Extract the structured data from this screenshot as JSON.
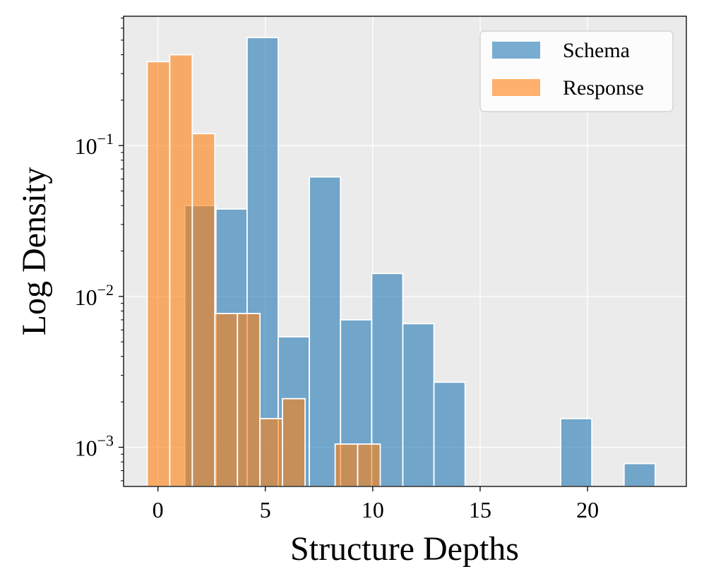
{
  "chart_data": {
    "type": "histogram",
    "xlabel": "Structure Depths",
    "ylabel": "Log Density",
    "yscale": "log",
    "xlim": [
      -1.6,
      24.6
    ],
    "ylim": [
      0.00055,
      0.72
    ],
    "grid": true,
    "legend_position": "top-right",
    "x_ticks": [
      {
        "value": 0,
        "label": "0"
      },
      {
        "value": 5,
        "label": "5"
      },
      {
        "value": 10,
        "label": "10"
      },
      {
        "value": 15,
        "label": "15"
      },
      {
        "value": 20,
        "label": "20"
      }
    ],
    "y_ticks": [
      {
        "value": 0.1,
        "base": "10",
        "exp": "−1"
      },
      {
        "value": 0.01,
        "base": "10",
        "exp": "−2"
      },
      {
        "value": 0.001,
        "base": "10",
        "exp": "−3"
      }
    ],
    "series": [
      {
        "name": "Schema",
        "color": "#1f77b4",
        "alpha": 0.6,
        "bins": [
          {
            "x0": 1.25,
            "x1": 2.7,
            "value": 0.04
          },
          {
            "x0": 2.7,
            "x1": 4.15,
            "value": 0.038
          },
          {
            "x0": 4.15,
            "x1": 5.6,
            "value": 0.52
          },
          {
            "x0": 5.6,
            "x1": 7.05,
            "value": 0.0054
          },
          {
            "x0": 7.05,
            "x1": 8.5,
            "value": 0.062
          },
          {
            "x0": 8.5,
            "x1": 9.95,
            "value": 0.007
          },
          {
            "x0": 9.95,
            "x1": 11.4,
            "value": 0.0142
          },
          {
            "x0": 11.4,
            "x1": 12.85,
            "value": 0.0066
          },
          {
            "x0": 12.85,
            "x1": 14.3,
            "value": 0.0027
          },
          {
            "x0": 18.75,
            "x1": 20.2,
            "value": 0.00155
          },
          {
            "x0": 21.7,
            "x1": 23.15,
            "value": 0.00078
          }
        ]
      },
      {
        "name": "Response",
        "color": "#ff7f0e",
        "alpha": 0.6,
        "bins": [
          {
            "x0": -0.5,
            "x1": 0.55,
            "value": 0.36
          },
          {
            "x0": 0.55,
            "x1": 1.6,
            "value": 0.4
          },
          {
            "x0": 1.6,
            "x1": 2.65,
            "value": 0.12
          },
          {
            "x0": 2.65,
            "x1": 3.7,
            "value": 0.0077
          },
          {
            "x0": 3.7,
            "x1": 4.75,
            "value": 0.0077
          },
          {
            "x0": 4.75,
            "x1": 5.8,
            "value": 0.00155
          },
          {
            "x0": 5.8,
            "x1": 6.85,
            "value": 0.0021
          },
          {
            "x0": 8.25,
            "x1": 9.3,
            "value": 0.00105
          },
          {
            "x0": 9.3,
            "x1": 10.35,
            "value": 0.00105
          }
        ]
      }
    ]
  }
}
